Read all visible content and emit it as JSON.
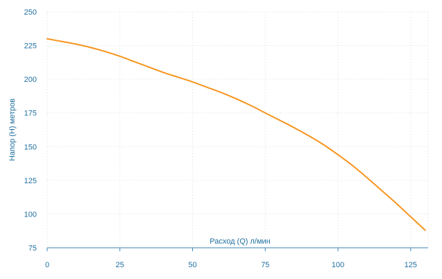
{
  "chart_data": {
    "type": "line",
    "title": "",
    "xlabel": "Расход (Q) л/мин",
    "ylabel": "Напор (H) метров",
    "xlim": [
      0,
      131
    ],
    "ylim": [
      75,
      250
    ],
    "xticks": [
      0,
      25,
      50,
      75,
      100,
      125
    ],
    "yticks": [
      75,
      100,
      125,
      150,
      175,
      200,
      225,
      250
    ],
    "grid": true,
    "legend": "none",
    "series_color": "#f7941d",
    "axis_color": "#1f6f9f",
    "series": [
      {
        "x": [
          0,
          5,
          10,
          15,
          20,
          25,
          30,
          35,
          40,
          45,
          50,
          55,
          60,
          65,
          70,
          75,
          80,
          85,
          90,
          95,
          100,
          105,
          110,
          115,
          120,
          125,
          130
        ],
        "y": [
          230,
          228,
          226,
          223.5,
          220.5,
          217,
          213,
          209,
          205,
          201.5,
          198,
          194,
          190,
          185.5,
          180.5,
          175,
          169.5,
          164,
          158,
          151.5,
          144,
          136,
          127,
          117.5,
          108,
          98,
          88
        ]
      }
    ]
  }
}
